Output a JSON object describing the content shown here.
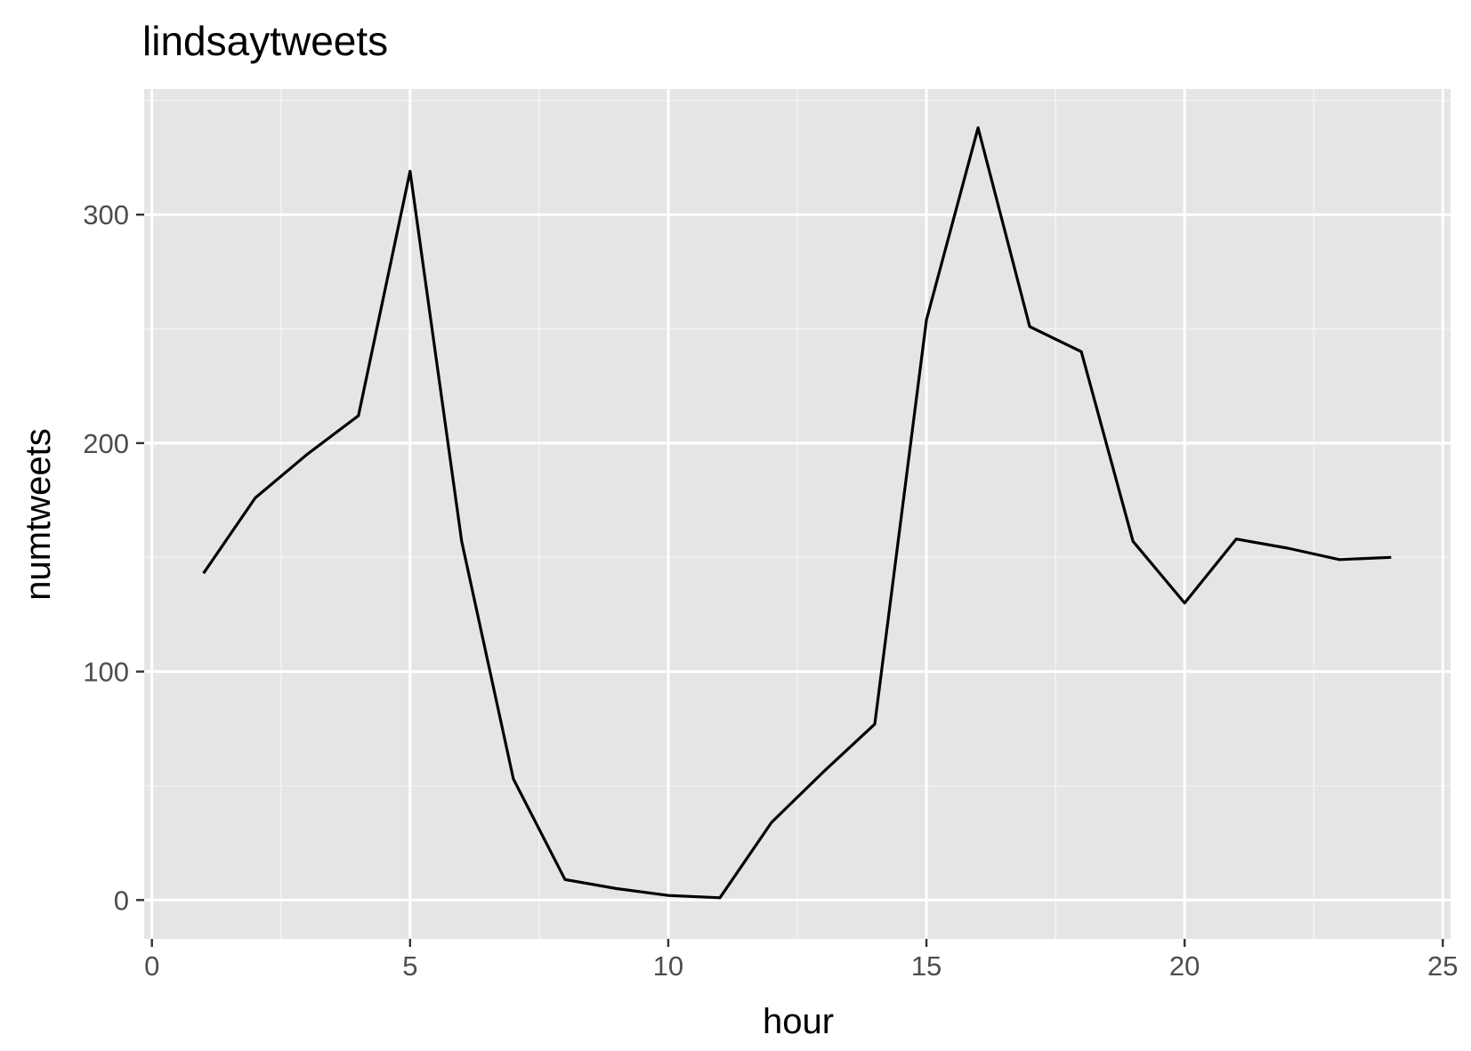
{
  "chart_data": {
    "type": "line",
    "title": "lindsaytweets",
    "xlabel": "hour",
    "ylabel": "numtweets",
    "xlim": [
      -0.15,
      25.15
    ],
    "ylim": [
      -17,
      355
    ],
    "x_ticks": [
      0,
      5,
      10,
      15,
      20,
      25
    ],
    "x_minor_ticks": [
      2.5,
      7.5,
      12.5,
      17.5,
      22.5
    ],
    "y_ticks": [
      0,
      100,
      200,
      300
    ],
    "y_minor_ticks": [
      50,
      150,
      250,
      350
    ],
    "grid": true,
    "legend": "none",
    "series": [
      {
        "x": [
          1,
          2,
          3,
          4,
          5,
          6,
          7,
          8,
          9,
          10,
          11,
          12,
          13,
          14,
          15,
          16,
          17,
          18,
          19,
          20,
          21,
          22,
          23,
          24
        ],
        "values": [
          143,
          176,
          195,
          212,
          319,
          157,
          53,
          9,
          5,
          2,
          1,
          34,
          56,
          77,
          254,
          338,
          251,
          240,
          157,
          130,
          158,
          154,
          149,
          150
        ]
      }
    ],
    "colors": {
      "panel_background": "#e5e5e5",
      "grid_major": "#ffffff",
      "grid_minor": "#f2f2f2",
      "line": "#000000",
      "tick_mark": "#333333",
      "tick_label": "#4d4d4d"
    }
  }
}
